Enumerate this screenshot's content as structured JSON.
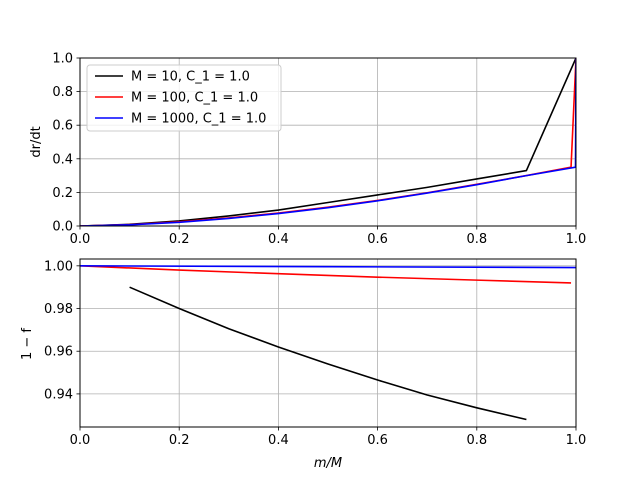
{
  "chart_data": [
    {
      "type": "line",
      "title": "",
      "xlabel": "",
      "ylabel": "dr/dt",
      "xlim": [
        0.0,
        1.0
      ],
      "ylim": [
        0.0,
        1.0
      ],
      "xticks": [
        0.0,
        0.2,
        0.4,
        0.6,
        0.8,
        1.0
      ],
      "xtick_labels": [
        "0.0",
        "0.2",
        "0.4",
        "0.6",
        "0.8",
        "1.0"
      ],
      "yticks": [
        0.0,
        0.2,
        0.4,
        0.6,
        0.8,
        1.0
      ],
      "ytick_labels": [
        "0.0",
        "0.2",
        "0.4",
        "0.6",
        "0.8",
        "1.0"
      ],
      "grid": true,
      "legend_position": "top-left",
      "series": [
        {
          "name": "M = 10, C_1 = 1.0",
          "color": "#000000",
          "x": [
            0.0,
            0.1,
            0.2,
            0.3,
            0.4,
            0.5,
            0.6,
            0.7,
            0.8,
            0.9,
            1.0
          ],
          "y": [
            0.0,
            0.01,
            0.03,
            0.06,
            0.095,
            0.14,
            0.185,
            0.23,
            0.28,
            0.33,
            1.0
          ]
        },
        {
          "name": "M = 100, C_1 = 1.0",
          "color": "#ff0000",
          "x": [
            0.0,
            0.1,
            0.2,
            0.3,
            0.4,
            0.5,
            0.6,
            0.7,
            0.8,
            0.9,
            0.99,
            1.0
          ],
          "y": [
            0.0,
            0.008,
            0.025,
            0.048,
            0.077,
            0.112,
            0.152,
            0.198,
            0.248,
            0.3,
            0.35,
            1.0
          ]
        },
        {
          "name": "M = 1000, C_1 = 1.0",
          "color": "#0000ff",
          "x": [
            0.0,
            0.1,
            0.2,
            0.3,
            0.4,
            0.5,
            0.6,
            0.7,
            0.8,
            0.9,
            0.999,
            1.0
          ],
          "y": [
            0.0,
            0.007,
            0.022,
            0.045,
            0.074,
            0.109,
            0.15,
            0.196,
            0.246,
            0.3,
            0.35,
            1.0
          ]
        }
      ]
    },
    {
      "type": "line",
      "title": "",
      "xlabel": "m/M",
      "ylabel": "1 − f",
      "xlim": [
        0.0,
        1.0
      ],
      "ylim": [
        0.9245,
        1.0032
      ],
      "xticks": [
        0.0,
        0.2,
        0.4,
        0.6,
        0.8,
        1.0
      ],
      "xtick_labels": [
        "0.0",
        "0.2",
        "0.4",
        "0.6",
        "0.8",
        "1.0"
      ],
      "yticks": [
        0.94,
        0.96,
        0.98,
        1.0
      ],
      "ytick_labels": [
        "0.94",
        "0.96",
        "0.98",
        "1.00"
      ],
      "grid": true,
      "series": [
        {
          "color": "#000000",
          "x": [
            0.1,
            0.2,
            0.3,
            0.4,
            0.5,
            0.6,
            0.7,
            0.8,
            0.9
          ],
          "y": [
            0.99,
            0.98,
            0.9705,
            0.962,
            0.954,
            0.9465,
            0.9395,
            0.9335,
            0.928
          ]
        },
        {
          "color": "#ff0000",
          "x": [
            0.0,
            0.2,
            0.4,
            0.6,
            0.8,
            0.99
          ],
          "y": [
            1.0,
            0.998,
            0.9963,
            0.9947,
            0.9933,
            0.992
          ]
        },
        {
          "color": "#0000ff",
          "x": [
            0.0,
            0.5,
            0.999
          ],
          "y": [
            1.0,
            0.9996,
            0.9992
          ]
        }
      ]
    }
  ]
}
